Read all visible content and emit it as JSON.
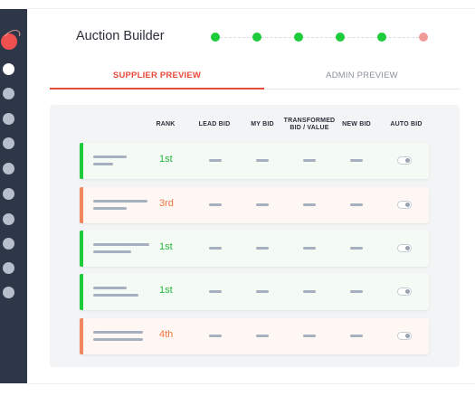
{
  "app": {
    "title": "Auction Builder"
  },
  "colors": {
    "sidebar": "#2d3748",
    "accent": "#e84a3c",
    "green": "#1ecb3a",
    "orange": "#f0875e",
    "step_pending": "#f29a9a"
  },
  "sidebar": {
    "logo_icon": "logo-icon",
    "items": [
      {
        "icon": "nav-dot-icon",
        "active": true
      },
      {
        "icon": "nav-dot-icon",
        "active": false
      },
      {
        "icon": "nav-dot-icon",
        "active": false
      },
      {
        "icon": "nav-dot-icon",
        "active": false
      },
      {
        "icon": "nav-dot-icon",
        "active": false
      },
      {
        "icon": "nav-dot-icon",
        "active": false
      },
      {
        "icon": "nav-dot-icon",
        "active": false
      },
      {
        "icon": "nav-dot-icon",
        "active": false
      },
      {
        "icon": "nav-dot-icon",
        "active": false
      },
      {
        "icon": "nav-dot-icon",
        "active": false
      }
    ]
  },
  "stepper": {
    "steps": [
      {
        "state": "complete"
      },
      {
        "state": "complete"
      },
      {
        "state": "complete"
      },
      {
        "state": "complete"
      },
      {
        "state": "complete"
      },
      {
        "state": "pending"
      }
    ]
  },
  "tabs": [
    {
      "label": "SUPPLIER PREVIEW",
      "active": true
    },
    {
      "label": "ADMIN PREVIEW",
      "active": false
    }
  ],
  "table": {
    "headers": {
      "rank": "RANK",
      "lead_bid": "LEAD BID",
      "my_bid": "MY BID",
      "transformed_1": "TRANSFORMED",
      "transformed_2": "BID / VALUE",
      "new_bid": "NEW BID",
      "auto_bid": "AUTO BID"
    },
    "rows": [
      {
        "rank": "1st",
        "status": "green",
        "auto_bid": false
      },
      {
        "rank": "3rd",
        "status": "orange",
        "auto_bid": false
      },
      {
        "rank": "1st",
        "status": "green",
        "auto_bid": false
      },
      {
        "rank": "1st",
        "status": "green",
        "auto_bid": false
      },
      {
        "rank": "4th",
        "status": "orange",
        "auto_bid": false
      }
    ]
  }
}
